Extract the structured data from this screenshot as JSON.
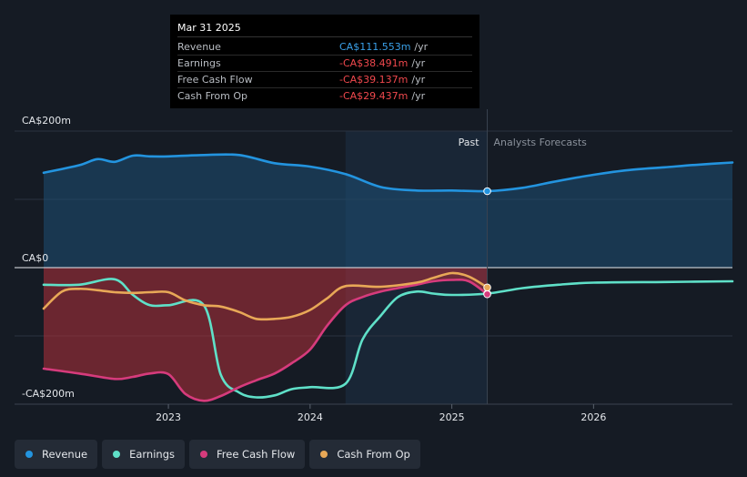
{
  "tooltip": {
    "date": "Mar 31 2025",
    "rows": [
      {
        "label": "Revenue",
        "value": "CA$111.553m",
        "unit": "/yr",
        "color": "#3aa0e8"
      },
      {
        "label": "Earnings",
        "value": "-CA$38.491m",
        "unit": "/yr",
        "color": "#f0484d"
      },
      {
        "label": "Free Cash Flow",
        "value": "-CA$39.137m",
        "unit": "/yr",
        "color": "#f0484d"
      },
      {
        "label": "Cash From Op",
        "value": "-CA$29.437m",
        "unit": "/yr",
        "color": "#f0484d"
      }
    ]
  },
  "legend": [
    {
      "label": "Revenue",
      "color": "#2394df"
    },
    {
      "label": "Earnings",
      "color": "#5fe0c8"
    },
    {
      "label": "Free Cash Flow",
      "color": "#d63b7c"
    },
    {
      "label": "Cash From Op",
      "color": "#e8a857"
    }
  ],
  "chart_data": {
    "type": "line",
    "x_range": [
      2022.12,
      2026.98
    ],
    "y_range": [
      -200,
      200
    ],
    "y_labels": [
      {
        "value": 200,
        "label": "CA$200m"
      },
      {
        "value": 0,
        "label": "CA$0"
      },
      {
        "value": -200,
        "label": "-CA$200m"
      }
    ],
    "x_ticks": [
      {
        "value": 2023.0,
        "label": "2023"
      },
      {
        "value": 2024.0,
        "label": "2024"
      },
      {
        "value": 2025.0,
        "label": "2025"
      },
      {
        "value": 2026.0,
        "label": "2026"
      }
    ],
    "divider": {
      "x": 2025.25,
      "past_label": "Past",
      "forecast_label": "Analysts Forecasts"
    },
    "highlight_start": 2024.25,
    "series": [
      {
        "name": "Revenue",
        "color": "#2394df",
        "fill": true,
        "points": [
          [
            2022.12,
            139
          ],
          [
            2022.37,
            150
          ],
          [
            2022.5,
            159
          ],
          [
            2022.62,
            155
          ],
          [
            2022.75,
            164
          ],
          [
            2022.87,
            163
          ],
          [
            2023.0,
            163
          ],
          [
            2023.25,
            165
          ],
          [
            2023.5,
            165
          ],
          [
            2023.75,
            153
          ],
          [
            2024.0,
            148
          ],
          [
            2024.25,
            137
          ],
          [
            2024.5,
            118
          ],
          [
            2024.75,
            113
          ],
          [
            2025.0,
            113
          ],
          [
            2025.25,
            112
          ],
          [
            2025.5,
            117
          ],
          [
            2025.75,
            127
          ],
          [
            2026.0,
            136
          ],
          [
            2026.25,
            143
          ],
          [
            2026.5,
            147
          ],
          [
            2026.75,
            151
          ],
          [
            2026.98,
            154
          ]
        ]
      },
      {
        "name": "Earnings",
        "color": "#5fe0c8",
        "fill": false,
        "points": [
          [
            2022.12,
            -25
          ],
          [
            2022.37,
            -25
          ],
          [
            2022.62,
            -17
          ],
          [
            2022.75,
            -40
          ],
          [
            2022.87,
            -55
          ],
          [
            2023.0,
            -55
          ],
          [
            2023.25,
            -55
          ],
          [
            2023.37,
            -157
          ],
          [
            2023.5,
            -183
          ],
          [
            2023.62,
            -190
          ],
          [
            2023.75,
            -187
          ],
          [
            2023.87,
            -178
          ],
          [
            2024.0,
            -175
          ],
          [
            2024.25,
            -170
          ],
          [
            2024.37,
            -105
          ],
          [
            2024.5,
            -70
          ],
          [
            2024.62,
            -43
          ],
          [
            2024.75,
            -35
          ],
          [
            2024.87,
            -38
          ],
          [
            2025.0,
            -40
          ],
          [
            2025.25,
            -38
          ],
          [
            2025.5,
            -30
          ],
          [
            2025.75,
            -25
          ],
          [
            2026.0,
            -22
          ],
          [
            2026.5,
            -21
          ],
          [
            2026.98,
            -20
          ]
        ]
      },
      {
        "name": "Free Cash Flow",
        "color": "#d63b7c",
        "fill": true,
        "points": [
          [
            2022.12,
            -148
          ],
          [
            2022.37,
            -155
          ],
          [
            2022.62,
            -163
          ],
          [
            2022.75,
            -160
          ],
          [
            2022.87,
            -155
          ],
          [
            2023.0,
            -156
          ],
          [
            2023.12,
            -185
          ],
          [
            2023.25,
            -195
          ],
          [
            2023.37,
            -188
          ],
          [
            2023.5,
            -175
          ],
          [
            2023.62,
            -165
          ],
          [
            2023.75,
            -155
          ],
          [
            2023.87,
            -140
          ],
          [
            2024.0,
            -120
          ],
          [
            2024.12,
            -85
          ],
          [
            2024.25,
            -55
          ],
          [
            2024.37,
            -43
          ],
          [
            2024.5,
            -35
          ],
          [
            2024.62,
            -30
          ],
          [
            2024.75,
            -25
          ],
          [
            2024.87,
            -20
          ],
          [
            2025.0,
            -18
          ],
          [
            2025.12,
            -20
          ],
          [
            2025.25,
            -39
          ]
        ]
      },
      {
        "name": "Cash From Op",
        "color": "#e8a857",
        "fill": false,
        "points": [
          [
            2022.12,
            -60
          ],
          [
            2022.25,
            -35
          ],
          [
            2022.37,
            -31
          ],
          [
            2022.5,
            -33
          ],
          [
            2022.62,
            -36
          ],
          [
            2022.75,
            -37
          ],
          [
            2022.87,
            -36
          ],
          [
            2023.0,
            -36
          ],
          [
            2023.12,
            -48
          ],
          [
            2023.25,
            -55
          ],
          [
            2023.37,
            -57
          ],
          [
            2023.5,
            -65
          ],
          [
            2023.62,
            -75
          ],
          [
            2023.75,
            -75
          ],
          [
            2023.87,
            -72
          ],
          [
            2024.0,
            -62
          ],
          [
            2024.12,
            -45
          ],
          [
            2024.25,
            -27
          ],
          [
            2024.5,
            -28
          ],
          [
            2024.75,
            -22
          ],
          [
            2024.87,
            -15
          ],
          [
            2025.0,
            -8
          ],
          [
            2025.12,
            -13
          ],
          [
            2025.25,
            -29
          ]
        ]
      }
    ]
  }
}
